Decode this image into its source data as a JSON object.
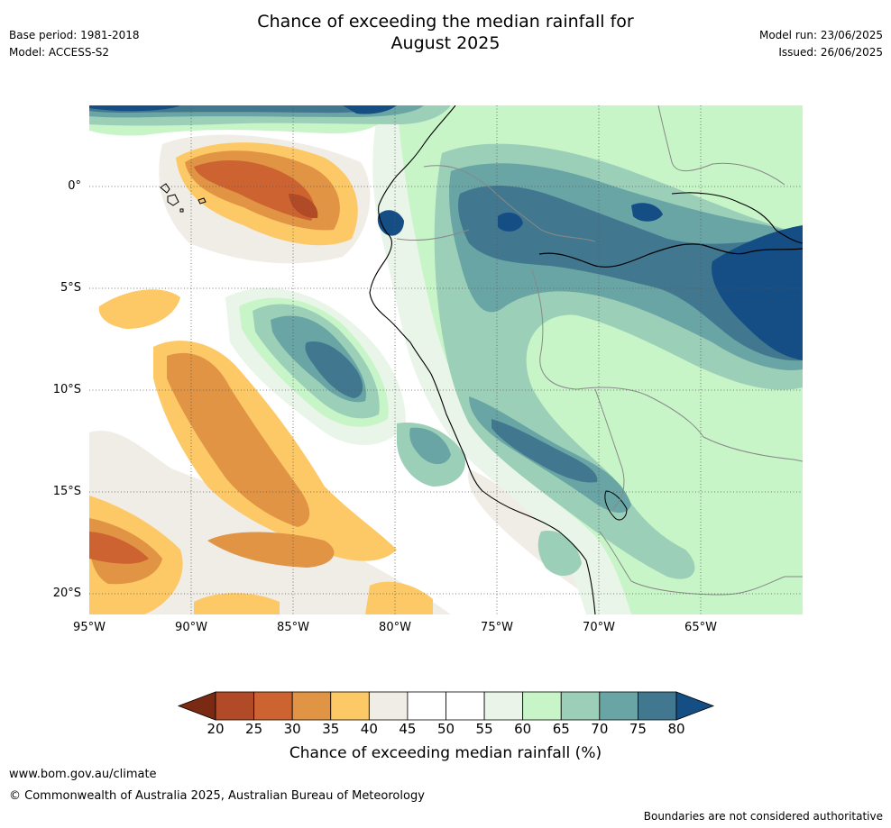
{
  "header": {
    "title_line1": "Chance of exceeding the median rainfall for",
    "title_line2": "August 2025",
    "base_period": "Base period: 1981-2018",
    "model": "Model: ACCESS-S2",
    "model_run": "Model run: 23/06/2025",
    "issued": "Issued: 26/06/2025"
  },
  "map": {
    "region": "Western South America",
    "lat_labels": [
      "0°",
      "5°S",
      "10°S",
      "15°S",
      "20°S"
    ],
    "lat_values": [
      0,
      -5,
      -10,
      -15,
      -20
    ],
    "lon_labels": [
      "95°W",
      "90°W",
      "85°W",
      "80°W",
      "75°W",
      "70°W",
      "65°W"
    ],
    "lon_values": [
      -95,
      -90,
      -85,
      -80,
      -75,
      -70,
      -65
    ],
    "lon_range": [
      -95,
      -60
    ],
    "lat_range": [
      -21,
      4
    ],
    "gridlines": "dotted"
  },
  "colorbar": {
    "ticks": [
      "20",
      "25",
      "30",
      "35",
      "40",
      "45",
      "50",
      "55",
      "60",
      "65",
      "70",
      "75",
      "80"
    ],
    "colors": [
      "#7a2a12",
      "#b04a27",
      "#cc6330",
      "#e09444",
      "#fdc866",
      "#f0ede6",
      "#ffffff",
      "#ffffff",
      "#e9f5e9",
      "#c8f5c8",
      "#9bcfb8",
      "#6aa5a5",
      "#42788f",
      "#154e85"
    ],
    "title": "Chance of exceeding median rainfall (%)"
  },
  "footer": {
    "url": "www.bom.gov.au/climate",
    "copyright": "© Commonwealth of Australia 2025, Australian Bureau of Meteorology",
    "disclaimer": "Boundaries are not considered authoritative"
  }
}
